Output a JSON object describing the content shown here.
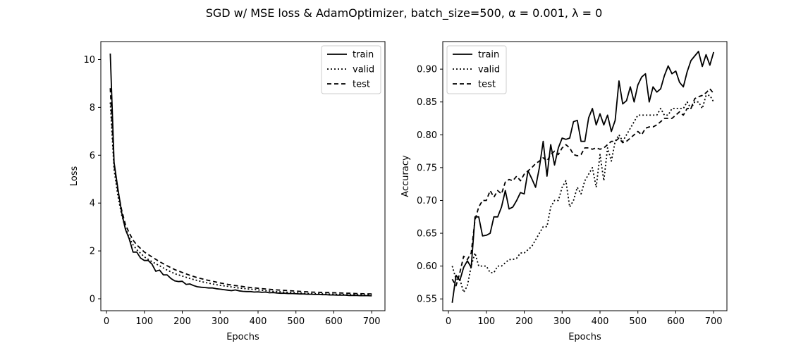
{
  "figure": {
    "suptitle": "SGD w/ MSE loss & AdamOptimizer, batch_size=500, α = 0.001, λ = 0"
  },
  "chart_data": [
    {
      "type": "line",
      "title": "",
      "xlabel": "Epochs",
      "ylabel": "Loss",
      "xlim": [
        -15,
        735
      ],
      "ylim": [
        -0.5,
        10.75
      ],
      "xticks": [
        0,
        100,
        200,
        300,
        400,
        500,
        600,
        700
      ],
      "yticks": [
        0,
        2,
        4,
        6,
        8,
        10
      ],
      "grid": false,
      "legend": "upper right",
      "series": [
        {
          "name": "train",
          "style": "solid",
          "x": [
            10,
            20,
            30,
            40,
            50,
            60,
            70,
            80,
            90,
            100,
            110,
            120,
            130,
            140,
            150,
            160,
            170,
            180,
            190,
            200,
            210,
            220,
            230,
            240,
            250,
            260,
            270,
            280,
            290,
            300,
            310,
            320,
            330,
            340,
            350,
            360,
            370,
            380,
            390,
            400,
            410,
            420,
            430,
            440,
            450,
            460,
            470,
            480,
            490,
            500,
            510,
            520,
            530,
            540,
            550,
            560,
            570,
            580,
            590,
            600,
            610,
            620,
            630,
            640,
            650,
            660,
            670,
            680,
            690,
            700
          ],
          "y": [
            10.25,
            5.7,
            4.6,
            3.6,
            2.9,
            2.5,
            1.95,
            1.95,
            1.7,
            1.6,
            1.6,
            1.45,
            1.15,
            1.2,
            1.0,
            1.0,
            0.85,
            0.75,
            0.72,
            0.73,
            0.6,
            0.62,
            0.55,
            0.5,
            0.48,
            0.47,
            0.45,
            0.45,
            0.42,
            0.4,
            0.38,
            0.36,
            0.34,
            0.37,
            0.33,
            0.31,
            0.3,
            0.3,
            0.28,
            0.29,
            0.27,
            0.28,
            0.25,
            0.26,
            0.24,
            0.23,
            0.23,
            0.22,
            0.22,
            0.21,
            0.2,
            0.2,
            0.19,
            0.19,
            0.18,
            0.18,
            0.17,
            0.17,
            0.16,
            0.16,
            0.15,
            0.15,
            0.15,
            0.14,
            0.14,
            0.14,
            0.13,
            0.13,
            0.13,
            0.12
          ]
        },
        {
          "name": "valid",
          "style": "dotted",
          "x": [
            10,
            20,
            30,
            40,
            50,
            60,
            70,
            80,
            90,
            100,
            120,
            140,
            160,
            180,
            200,
            220,
            240,
            260,
            280,
            300,
            320,
            340,
            360,
            380,
            400,
            420,
            440,
            460,
            480,
            500,
            520,
            540,
            560,
            580,
            600,
            620,
            640,
            660,
            680,
            700
          ],
          "y": [
            8.2,
            5.4,
            4.3,
            3.5,
            2.95,
            2.55,
            2.25,
            2.05,
            1.9,
            1.75,
            1.55,
            1.38,
            1.2,
            1.05,
            0.95,
            0.85,
            0.76,
            0.68,
            0.62,
            0.56,
            0.52,
            0.47,
            0.43,
            0.4,
            0.37,
            0.34,
            0.31,
            0.29,
            0.27,
            0.25,
            0.23,
            0.22,
            0.21,
            0.2,
            0.19,
            0.18,
            0.17,
            0.17,
            0.16,
            0.16
          ]
        },
        {
          "name": "test",
          "style": "dashed",
          "x": [
            10,
            20,
            30,
            40,
            50,
            60,
            70,
            80,
            90,
            100,
            120,
            140,
            160,
            180,
            200,
            220,
            240,
            260,
            280,
            300,
            320,
            340,
            360,
            380,
            400,
            420,
            440,
            460,
            480,
            500,
            520,
            540,
            560,
            580,
            600,
            620,
            640,
            660,
            680,
            700
          ],
          "y": [
            8.8,
            5.6,
            4.5,
            3.7,
            3.1,
            2.75,
            2.45,
            2.25,
            2.1,
            1.95,
            1.75,
            1.55,
            1.38,
            1.22,
            1.1,
            0.98,
            0.88,
            0.8,
            0.73,
            0.66,
            0.6,
            0.55,
            0.51,
            0.47,
            0.44,
            0.41,
            0.38,
            0.36,
            0.34,
            0.32,
            0.3,
            0.28,
            0.27,
            0.26,
            0.25,
            0.24,
            0.23,
            0.22,
            0.21,
            0.2
          ]
        }
      ]
    },
    {
      "type": "line",
      "title": "",
      "xlabel": "Epochs",
      "ylabel": "Accuracy",
      "xlim": [
        -15,
        735
      ],
      "ylim": [
        0.532,
        0.942
      ],
      "xticks": [
        0,
        100,
        200,
        300,
        400,
        500,
        600,
        700
      ],
      "yticks": [
        0.55,
        0.6,
        0.65,
        0.7,
        0.75,
        0.8,
        0.85,
        0.9
      ],
      "grid": false,
      "legend": "upper left",
      "series": [
        {
          "name": "train",
          "style": "solid",
          "x": [
            10,
            20,
            30,
            40,
            50,
            60,
            70,
            80,
            90,
            100,
            110,
            120,
            130,
            140,
            150,
            160,
            170,
            180,
            190,
            200,
            210,
            220,
            230,
            240,
            250,
            260,
            270,
            280,
            290,
            300,
            310,
            320,
            330,
            340,
            350,
            360,
            370,
            380,
            390,
            400,
            410,
            420,
            430,
            440,
            450,
            460,
            470,
            480,
            490,
            500,
            510,
            520,
            530,
            540,
            550,
            560,
            570,
            580,
            590,
            600,
            610,
            620,
            630,
            640,
            650,
            660,
            670,
            680,
            690,
            700
          ],
          "y": [
            0.544,
            0.586,
            0.578,
            0.598,
            0.608,
            0.598,
            0.675,
            0.675,
            0.646,
            0.647,
            0.65,
            0.675,
            0.675,
            0.69,
            0.715,
            0.687,
            0.69,
            0.7,
            0.712,
            0.71,
            0.745,
            0.733,
            0.72,
            0.75,
            0.79,
            0.737,
            0.785,
            0.754,
            0.78,
            0.795,
            0.793,
            0.795,
            0.82,
            0.822,
            0.79,
            0.79,
            0.826,
            0.84,
            0.815,
            0.832,
            0.815,
            0.83,
            0.805,
            0.822,
            0.882,
            0.847,
            0.852,
            0.873,
            0.85,
            0.876,
            0.888,
            0.893,
            0.85,
            0.873,
            0.865,
            0.87,
            0.89,
            0.905,
            0.893,
            0.897,
            0.88,
            0.873,
            0.896,
            0.913,
            0.92,
            0.927,
            0.904,
            0.922,
            0.906,
            0.926
          ]
        },
        {
          "name": "valid",
          "style": "dotted",
          "x": [
            10,
            20,
            30,
            40,
            50,
            60,
            70,
            80,
            90,
            100,
            110,
            120,
            130,
            140,
            150,
            160,
            170,
            180,
            190,
            200,
            210,
            220,
            230,
            240,
            250,
            260,
            270,
            280,
            290,
            300,
            310,
            320,
            330,
            340,
            350,
            360,
            370,
            380,
            390,
            400,
            410,
            420,
            430,
            440,
            450,
            460,
            470,
            480,
            490,
            500,
            510,
            520,
            530,
            540,
            550,
            560,
            570,
            580,
            590,
            600,
            610,
            620,
            630,
            640,
            650,
            660,
            670,
            680,
            690,
            700
          ],
          "y": [
            0.6,
            0.58,
            0.58,
            0.56,
            0.57,
            0.6,
            0.62,
            0.6,
            0.6,
            0.6,
            0.59,
            0.59,
            0.6,
            0.6,
            0.605,
            0.61,
            0.61,
            0.612,
            0.62,
            0.62,
            0.625,
            0.63,
            0.64,
            0.65,
            0.66,
            0.66,
            0.69,
            0.7,
            0.7,
            0.72,
            0.73,
            0.69,
            0.7,
            0.72,
            0.71,
            0.73,
            0.74,
            0.75,
            0.72,
            0.77,
            0.73,
            0.78,
            0.76,
            0.79,
            0.8,
            0.79,
            0.8,
            0.81,
            0.82,
            0.83,
            0.83,
            0.83,
            0.83,
            0.83,
            0.83,
            0.84,
            0.83,
            0.83,
            0.84,
            0.84,
            0.84,
            0.84,
            0.85,
            0.84,
            0.85,
            0.85,
            0.84,
            0.86,
            0.86,
            0.85
          ]
        },
        {
          "name": "test",
          "style": "dashed",
          "x": [
            10,
            20,
            30,
            40,
            50,
            60,
            70,
            80,
            90,
            100,
            110,
            120,
            130,
            140,
            150,
            160,
            170,
            180,
            190,
            200,
            210,
            220,
            230,
            240,
            250,
            260,
            270,
            280,
            290,
            300,
            310,
            320,
            330,
            340,
            350,
            360,
            370,
            380,
            390,
            400,
            410,
            420,
            430,
            440,
            450,
            460,
            470,
            480,
            490,
            500,
            510,
            520,
            530,
            540,
            550,
            560,
            570,
            580,
            590,
            600,
            610,
            620,
            630,
            640,
            650,
            660,
            670,
            680,
            690,
            700
          ],
          "y": [
            0.58,
            0.57,
            0.59,
            0.615,
            0.61,
            0.62,
            0.67,
            0.69,
            0.7,
            0.7,
            0.715,
            0.705,
            0.715,
            0.71,
            0.728,
            0.732,
            0.73,
            0.737,
            0.73,
            0.74,
            0.745,
            0.75,
            0.756,
            0.76,
            0.765,
            0.76,
            0.77,
            0.775,
            0.77,
            0.78,
            0.785,
            0.78,
            0.77,
            0.768,
            0.77,
            0.78,
            0.78,
            0.778,
            0.78,
            0.778,
            0.78,
            0.785,
            0.79,
            0.79,
            0.795,
            0.788,
            0.79,
            0.795,
            0.8,
            0.805,
            0.8,
            0.81,
            0.812,
            0.812,
            0.815,
            0.82,
            0.825,
            0.825,
            0.825,
            0.83,
            0.835,
            0.83,
            0.84,
            0.84,
            0.855,
            0.858,
            0.86,
            0.864,
            0.87,
            0.863
          ]
        }
      ]
    }
  ]
}
